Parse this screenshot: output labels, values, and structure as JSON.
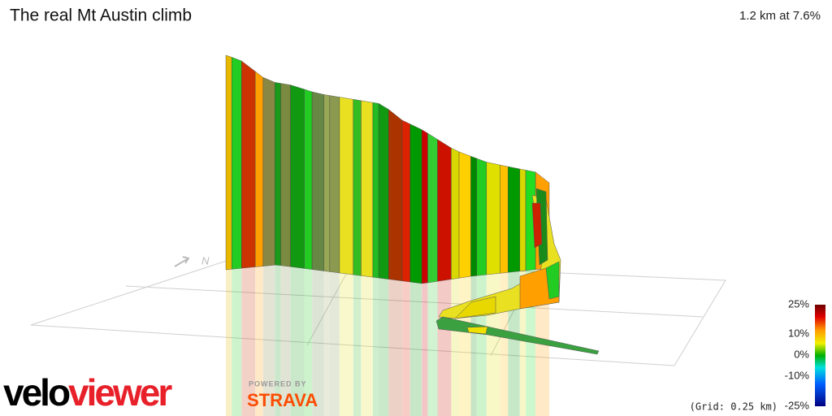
{
  "header": {
    "title": "The real Mt Austin climb",
    "summary": "1.2 km at 7.6%"
  },
  "compass": "N",
  "legend": {
    "labels": [
      "25%",
      "10%",
      "0%",
      "-10%",
      "-25%"
    ],
    "grid_note": "(Grid: 0.25 km)"
  },
  "branding": {
    "velo": "velo",
    "viewer": "viewer",
    "powered_by": "POWERED BY",
    "strava": "STRAVA"
  }
}
